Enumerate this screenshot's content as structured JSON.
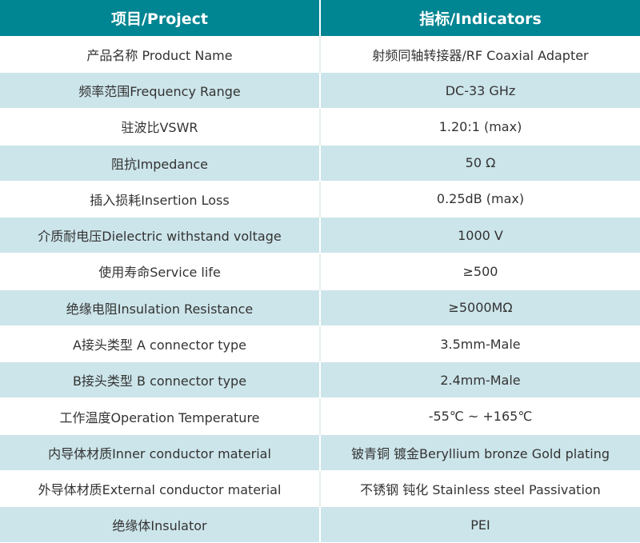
{
  "header": {
    "project": "项目/Project",
    "indicators": "指标/Indicators"
  },
  "colors": {
    "header_bg": "#008592",
    "alt_row_bg": "#cce5ea"
  },
  "rows": [
    {
      "project": "产品名称 Product Name",
      "indicator": "射频同轴转接器/RF Coaxial Adapter"
    },
    {
      "project": "频率范围Frequency Range",
      "indicator": "DC-33 GHz"
    },
    {
      "project": "驻波比VSWR",
      "indicator": "1.20:1 (max)"
    },
    {
      "project": "阻抗Impedance",
      "indicator": "50 Ω"
    },
    {
      "project": "插入损耗Insertion Loss",
      "indicator": "0.25dB (max)"
    },
    {
      "project": "介质耐电压Dielectric withstand voltage",
      "indicator": "1000 V"
    },
    {
      "project": "使用寿命Service life",
      "indicator": "≥500"
    },
    {
      "project": "绝缘电阻Insulation Resistance",
      "indicator": "≥5000MΩ"
    },
    {
      "project": "A接头类型 A connector type",
      "indicator": "3.5mm-Male"
    },
    {
      "project": "B接头类型 B connector type",
      "indicator": "2.4mm-Male"
    },
    {
      "project": "工作温度Operation Temperature",
      "indicator": "-55℃ ~ +165℃"
    },
    {
      "project": "内导体材质Inner conductor material",
      "indicator": "铍青铜 镀金Beryllium bronze Gold plating"
    },
    {
      "project": "外导体材质External conductor material",
      "indicator": "不锈钢 钝化 Stainless steel Passivation"
    },
    {
      "project": "绝缘体Insulator",
      "indicator": "PEI"
    }
  ]
}
